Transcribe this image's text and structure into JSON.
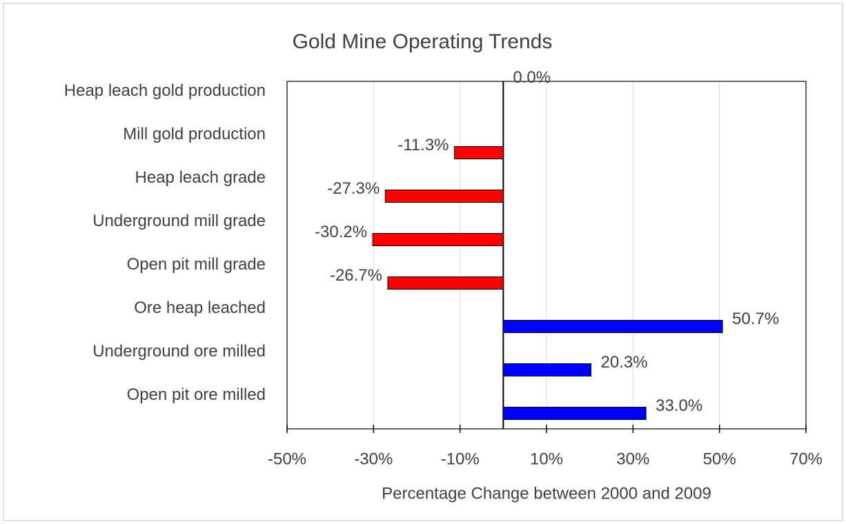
{
  "chart_data": {
    "type": "bar",
    "orientation": "horizontal",
    "title": "Gold Mine Operating Trends",
    "x_label": "Percentage Change between 2000 and 2009",
    "categories": [
      "Heap leach gold production",
      "Mill gold production",
      "Heap leach grade",
      "Underground mill grade",
      "Open pit mill grade",
      "Ore heap leached",
      "Underground ore milled",
      "Open pit ore milled"
    ],
    "values": [
      0.0,
      -11.3,
      -27.3,
      -30.2,
      -26.7,
      50.7,
      20.3,
      33.0
    ],
    "value_labels": [
      "0.0%",
      "-11.3%",
      "-27.3%",
      "-30.2%",
      "-26.7%",
      "50.7%",
      "20.3%",
      "33.0%"
    ],
    "colors": [
      "#ff0000",
      "#ff0000",
      "#ff0000",
      "#ff0000",
      "#ff0000",
      "#0000ff",
      "#0000ff",
      "#0000ff"
    ],
    "xlim": [
      -50,
      70
    ],
    "xticks": [
      {
        "value": -50,
        "label": "-50%"
      },
      {
        "value": -30,
        "label": "-30%"
      },
      {
        "value": -10,
        "label": "-10%"
      },
      {
        "value": 10,
        "label": "10%"
      },
      {
        "value": 30,
        "label": "30%"
      },
      {
        "value": 50,
        "label": "50%"
      },
      {
        "value": 70,
        "label": "70%"
      }
    ],
    "grid": true
  }
}
